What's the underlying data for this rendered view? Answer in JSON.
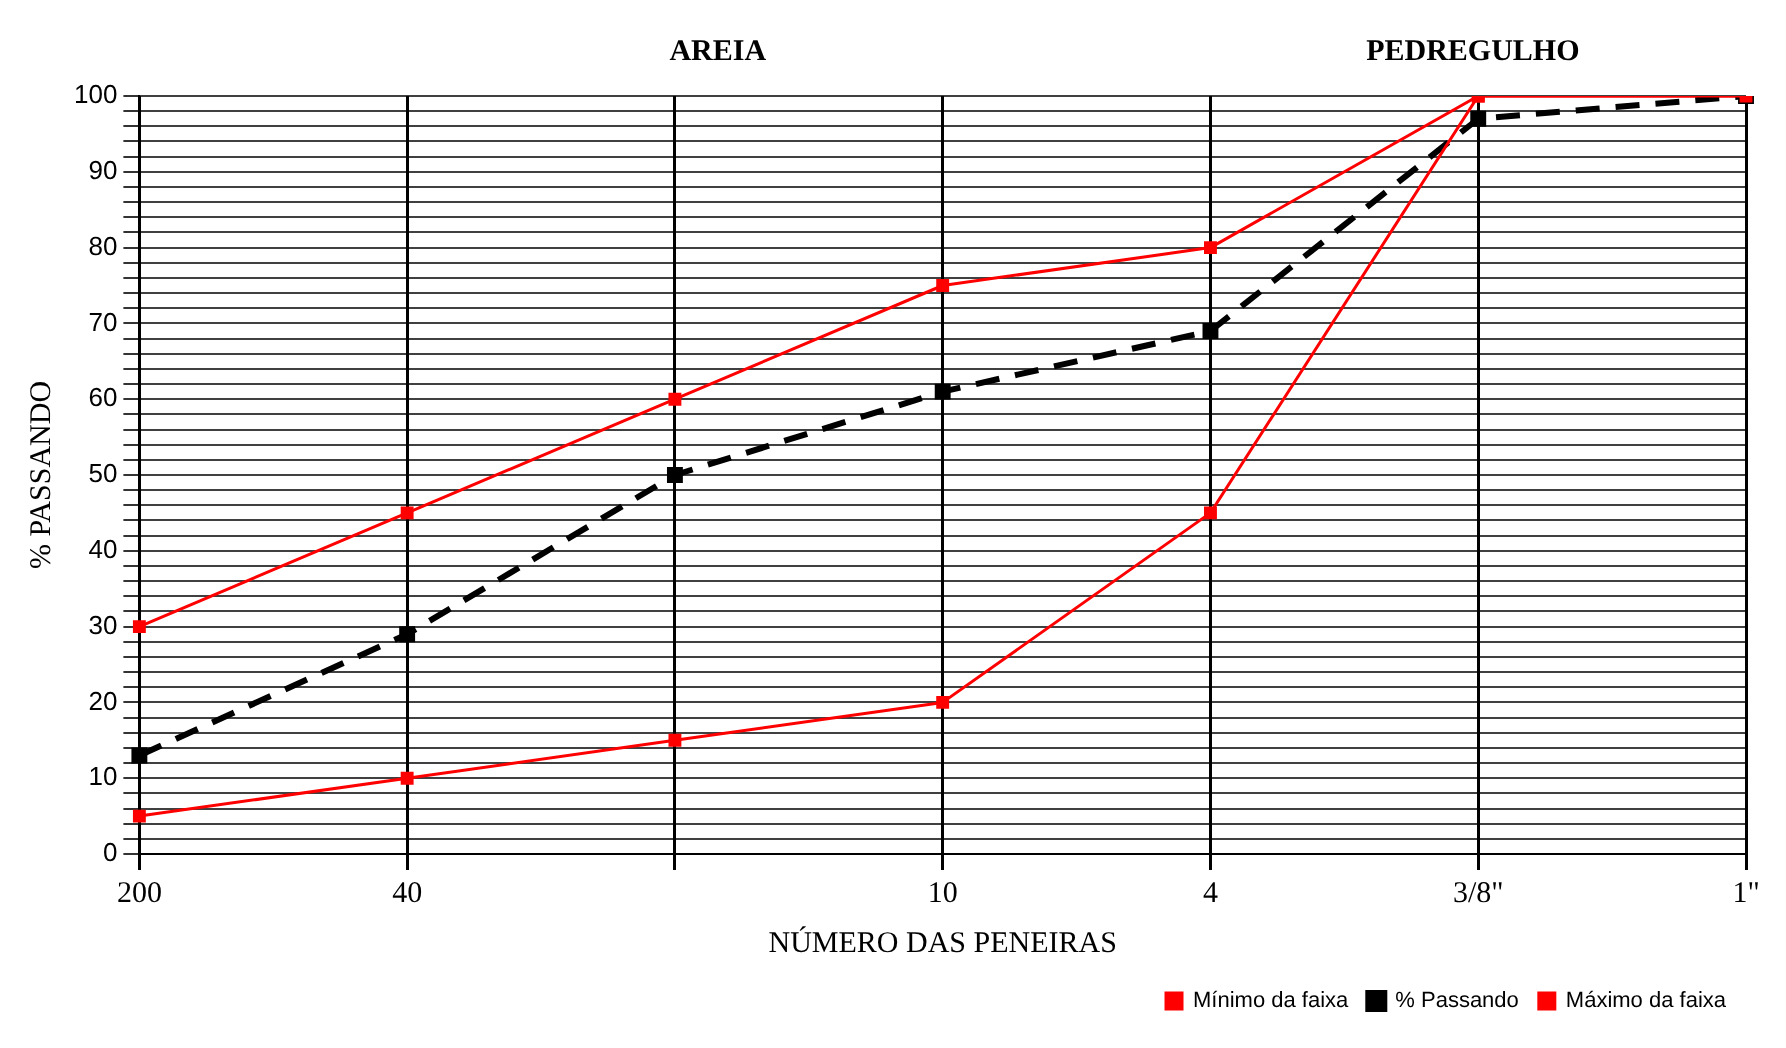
{
  "chart_data": {
    "type": "line",
    "xlabel": "NÚMERO DAS PENEIRAS",
    "ylabel": "% PASSANDO",
    "annotations": [
      "AREIA",
      "PEDREGULHO"
    ],
    "categories": [
      "200",
      "40",
      null,
      "10",
      "4",
      "3/8\"",
      "1\""
    ],
    "series": [
      {
        "name": "Mínimo da faixa",
        "color": "#ff0000",
        "values": [
          5,
          10,
          15,
          20,
          45,
          100,
          100
        ],
        "marker": "square",
        "line_style": "solid"
      },
      {
        "name": "% Passando",
        "color": "#000000",
        "values": [
          13,
          29,
          50,
          61,
          69,
          97,
          100
        ],
        "marker": "square",
        "line_style": "dashed"
      },
      {
        "name": "Máximo da faixa",
        "color": "#ff0000",
        "values": [
          30,
          45,
          60,
          75,
          80,
          100,
          100
        ],
        "marker": "square",
        "line_style": "solid"
      }
    ],
    "ylim": [
      0,
      100
    ],
    "yticks": [
      0,
      {
        "value": 2,
        "label": null
      },
      {
        "value": 4,
        "label": null
      },
      {
        "value": 6,
        "label": null
      },
      {
        "value": 8,
        "label": null
      },
      10,
      {
        "value": 12,
        "label": null
      },
      {
        "value": 14,
        "label": null
      },
      {
        "value": 16,
        "label": null
      },
      {
        "value": 18,
        "label": null
      },
      20,
      {
        "value": 22,
        "label": null
      },
      {
        "value": 24,
        "label": null
      },
      {
        "value": 26,
        "label": null
      },
      {
        "value": 28,
        "label": null
      },
      30,
      {
        "value": 32,
        "label": null
      },
      {
        "value": 34,
        "label": null
      },
      {
        "value": 36,
        "label": null
      },
      {
        "value": 38,
        "label": null
      },
      40,
      {
        "value": 42,
        "label": null
      },
      {
        "value": 44,
        "label": null
      },
      {
        "value": 46,
        "label": null
      },
      {
        "value": 48,
        "label": null
      },
      50,
      {
        "value": 52,
        "label": null
      },
      {
        "value": 54,
        "label": null
      },
      {
        "value": 56,
        "label": null
      },
      {
        "value": 58,
        "label": null
      },
      60,
      {
        "value": 62,
        "label": null
      },
      {
        "value": 64,
        "label": null
      },
      {
        "value": 66,
        "label": null
      },
      {
        "value": 68,
        "label": null
      },
      70,
      {
        "value": 72,
        "label": null
      },
      {
        "value": 74,
        "label": null
      },
      {
        "value": 76,
        "label": null
      },
      {
        "value": 78,
        "label": null
      },
      80,
      {
        "value": 82,
        "label": null
      },
      {
        "value": 84,
        "label": null
      },
      {
        "value": 86,
        "label": null
      },
      {
        "value": 88,
        "label": null
      },
      90,
      {
        "value": 92,
        "label": null
      },
      {
        "value": 94,
        "label": null
      },
      {
        "value": 96,
        "label": null
      },
      {
        "value": 98,
        "label": null
      },
      100
    ],
    "grid": true,
    "legend": "bottom right"
  }
}
